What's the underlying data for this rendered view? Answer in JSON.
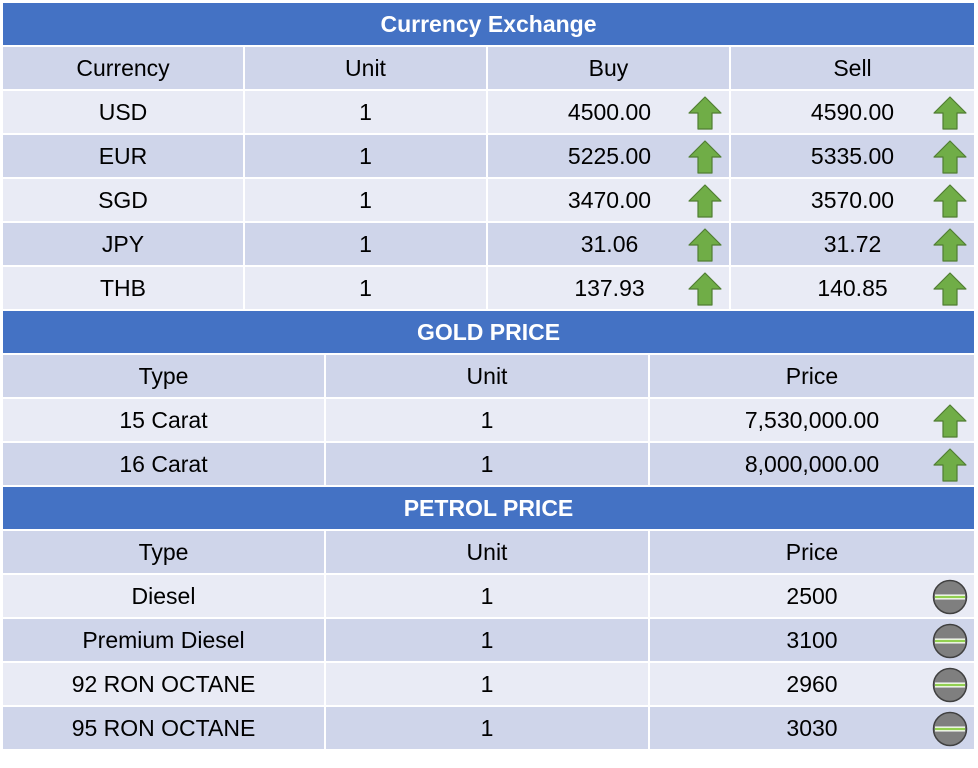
{
  "currency": {
    "title": "Currency Exchange",
    "headers": [
      "Currency",
      "Unit",
      "Buy",
      "Sell"
    ],
    "rows": [
      {
        "currency": "USD",
        "unit": "1",
        "buy": "4500.00",
        "sell": "4590.00",
        "buy_trend": "up-arrow-icon",
        "sell_trend": "up-arrow-icon"
      },
      {
        "currency": "EUR",
        "unit": "1",
        "buy": "5225.00",
        "sell": "5335.00",
        "buy_trend": "up-arrow-icon",
        "sell_trend": "up-arrow-icon"
      },
      {
        "currency": "SGD",
        "unit": "1",
        "buy": "3470.00",
        "sell": "3570.00",
        "buy_trend": "up-arrow-icon",
        "sell_trend": "up-arrow-icon"
      },
      {
        "currency": "JPY",
        "unit": "1",
        "buy": "31.06",
        "sell": "31.72",
        "buy_trend": "up-arrow-icon",
        "sell_trend": "up-arrow-icon"
      },
      {
        "currency": "THB",
        "unit": "1",
        "buy": "137.93",
        "sell": "140.85",
        "buy_trend": "up-arrow-icon",
        "sell_trend": "up-arrow-icon"
      }
    ]
  },
  "gold": {
    "title": "GOLD PRICE",
    "headers": [
      "Type",
      "Unit",
      "Price"
    ],
    "rows": [
      {
        "type": "15 Carat",
        "unit": "1",
        "price": "7,530,000.00",
        "trend": "up-arrow-icon"
      },
      {
        "type": "16 Carat",
        "unit": "1",
        "price": "8,000,000.00",
        "trend": "up-arrow-icon"
      }
    ]
  },
  "petrol": {
    "title": "PETROL PRICE",
    "headers": [
      "Type",
      "Unit",
      "Price"
    ],
    "rows": [
      {
        "type": "Diesel",
        "unit": "1",
        "price": "2500",
        "trend": "no-change-icon"
      },
      {
        "type": "Premium Diesel",
        "unit": "1",
        "price": "3100",
        "trend": "no-change-icon"
      },
      {
        "type": "92 RON OCTANE",
        "unit": "1",
        "price": "2960",
        "trend": "no-change-icon"
      },
      {
        "type": "95 RON OCTANE",
        "unit": "1",
        "price": "3030",
        "trend": "no-change-icon"
      }
    ]
  },
  "colors": {
    "band": "#4472c4",
    "header_row": "#cfd5ea",
    "row_light": "#e9ebf5",
    "row_dark": "#cfd5ea",
    "arrow_fill": "#70ad47",
    "arrow_stroke": "#507e32",
    "neutral_fill": "#7f7f7f",
    "neutral_line": "#92d050"
  }
}
